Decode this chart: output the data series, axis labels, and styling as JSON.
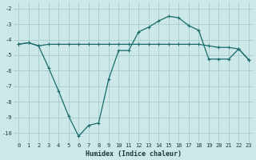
{
  "xlabel": "Humidex (Indice chaleur)",
  "background_color": "#cce8e8",
  "grid_color": "#aacfcf",
  "line_color": "#1a6b6b",
  "xlim": [
    -0.5,
    23.5
  ],
  "ylim": [
    -10.6,
    -1.6
  ],
  "yticks": [
    -10,
    -9,
    -8,
    -7,
    -6,
    -5,
    -4,
    -3,
    -2
  ],
  "xticks": [
    0,
    1,
    2,
    3,
    4,
    5,
    6,
    7,
    8,
    9,
    10,
    11,
    12,
    13,
    14,
    15,
    16,
    17,
    18,
    19,
    20,
    21,
    22,
    23
  ],
  "line1_x": [
    0,
    1,
    2,
    3,
    4,
    5,
    6,
    7,
    8,
    9,
    10,
    11,
    12,
    13,
    14,
    15,
    16,
    17,
    18,
    19,
    20,
    21,
    22,
    23
  ],
  "line1_y": [
    -4.3,
    -4.2,
    -4.4,
    -4.3,
    -4.3,
    -4.3,
    -4.3,
    -4.3,
    -4.3,
    -4.3,
    -4.3,
    -4.3,
    -4.3,
    -4.3,
    -4.3,
    -4.3,
    -4.3,
    -4.3,
    -4.3,
    -4.4,
    -4.5,
    -4.5,
    -4.6,
    -5.3
  ],
  "line2_x": [
    0,
    1,
    2,
    3,
    4,
    5,
    6,
    7,
    8,
    9,
    10,
    11,
    12,
    13,
    14,
    15,
    16,
    17,
    18,
    19,
    20,
    21,
    22,
    23
  ],
  "line2_y": [
    -4.3,
    -4.2,
    -4.4,
    -5.8,
    -7.3,
    -8.9,
    -10.2,
    -9.5,
    -9.35,
    -6.55,
    -4.7,
    -4.7,
    -3.5,
    -3.2,
    -2.8,
    -2.5,
    -2.6,
    -3.1,
    -3.4,
    -5.25,
    -5.25,
    -5.25,
    -4.6,
    -5.3
  ]
}
